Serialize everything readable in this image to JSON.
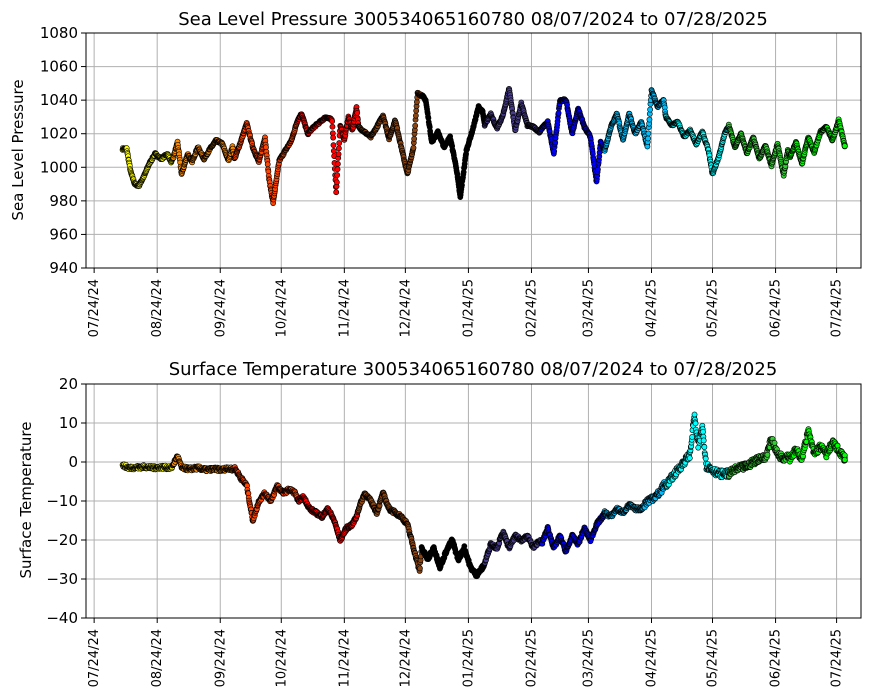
{
  "figure": {
    "background": "#ffffff",
    "grid_color": "#b0b0b0",
    "month_colors": [
      "#ffff00",
      "#ff8c00",
      "#ff4500",
      "#ff0000",
      "#8b4513",
      "#000000",
      "#483d8b",
      "#0000ff",
      "#00bfff",
      "#00ffff",
      "#32cd32",
      "#00ff00"
    ]
  },
  "chart_data": [
    {
      "type": "scatter",
      "title": "Sea Level Pressure 300534065160780  08/07/2024 to 07/28/2025",
      "xlabel": "",
      "ylabel": "Sea Level Pressure",
      "ylim": [
        940,
        1080
      ],
      "yticks": [
        940,
        960,
        980,
        1000,
        1020,
        1040,
        1060,
        1080
      ],
      "xlim": [
        "2024-07-20",
        "2025-08-05"
      ],
      "xticks": [
        "2024-07-24",
        "2024-08-24",
        "2024-09-24",
        "2024-10-24",
        "2024-11-24",
        "2024-12-24",
        "2025-01-24",
        "2025-02-24",
        "2025-03-24",
        "2025-04-24",
        "2025-05-24",
        "2025-06-24",
        "2025-07-24"
      ],
      "xtick_labels": [
        "07/24/24",
        "08/24/24",
        "09/24/24",
        "10/24/24",
        "11/24/24",
        "12/24/24",
        "01/24/25",
        "02/24/25",
        "03/24/25",
        "04/24/25",
        "05/24/25",
        "06/24/25",
        "07/24/25"
      ],
      "grid": true,
      "legend": "none",
      "series": [
        {
          "color": "#ffff00",
          "x": [
            "2024-08-07",
            "2024-08-09",
            "2024-08-11",
            "2024-08-13",
            "2024-08-15",
            "2024-08-18",
            "2024-08-20",
            "2024-08-23",
            "2024-08-26",
            "2024-08-29",
            "2024-08-31"
          ],
          "y": [
            1011,
            1011,
            997,
            990,
            989,
            996,
            1002,
            1008,
            1005,
            1008,
            1003
          ]
        },
        {
          "color": "#ff8c00",
          "x": [
            "2024-09-01",
            "2024-09-03",
            "2024-09-05",
            "2024-09-08",
            "2024-09-10",
            "2024-09-13",
            "2024-09-16",
            "2024-09-19",
            "2024-09-22",
            "2024-09-25",
            "2024-09-28",
            "2024-09-30"
          ],
          "y": [
            1006,
            1015,
            996,
            1008,
            1003,
            1012,
            1005,
            1011,
            1016,
            1014,
            1004,
            1012
          ]
        },
        {
          "color": "#ff4500",
          "x": [
            "2024-10-01",
            "2024-10-04",
            "2024-10-07",
            "2024-10-10",
            "2024-10-13",
            "2024-10-16",
            "2024-10-18",
            "2024-10-20",
            "2024-10-23",
            "2024-10-26",
            "2024-10-29",
            "2024-10-31"
          ],
          "y": [
            1005,
            1015,
            1026,
            1012,
            1003,
            1018,
            993,
            979,
            1004,
            1010,
            1016,
            1024
          ]
        },
        {
          "color": "#ff0000",
          "x": [
            "2024-11-01",
            "2024-11-03",
            "2024-11-06",
            "2024-11-09",
            "2024-11-12",
            "2024-11-15",
            "2024-11-18",
            "2024-11-20",
            "2024-11-22",
            "2024-11-24",
            "2024-11-26",
            "2024-11-28",
            "2024-11-30"
          ],
          "y": [
            1028,
            1032,
            1020,
            1024,
            1027,
            1030,
            1028,
            985,
            1025,
            1016,
            1030,
            1022,
            1036
          ]
        },
        {
          "color": "#8b4513",
          "x": [
            "2024-12-01",
            "2024-12-04",
            "2024-12-07",
            "2024-12-10",
            "2024-12-13",
            "2024-12-16",
            "2024-12-19",
            "2024-12-22",
            "2024-12-25",
            "2024-12-28",
            "2024-12-30"
          ],
          "y": [
            1024,
            1021,
            1018,
            1024,
            1031,
            1017,
            1028,
            1012,
            996,
            1012,
            1044
          ]
        },
        {
          "color": "#000000",
          "x": [
            "2025-01-01",
            "2025-01-03",
            "2025-01-06",
            "2025-01-09",
            "2025-01-12",
            "2025-01-15",
            "2025-01-18",
            "2025-01-20",
            "2025-01-23",
            "2025-01-26",
            "2025-01-29",
            "2025-01-31"
          ],
          "y": [
            1043,
            1040,
            1015,
            1021,
            1012,
            1018,
            1000,
            982,
            1010,
            1022,
            1036,
            1033
          ]
        },
        {
          "color": "#483d8b",
          "x": [
            "2025-02-01",
            "2025-02-04",
            "2025-02-07",
            "2025-02-10",
            "2025-02-13",
            "2025-02-16",
            "2025-02-19",
            "2025-02-22",
            "2025-02-25",
            "2025-02-28"
          ],
          "y": [
            1025,
            1032,
            1023,
            1031,
            1047,
            1022,
            1038,
            1025,
            1024,
            1021
          ]
        },
        {
          "color": "#0000ff",
          "x": [
            "2025-03-01",
            "2025-03-04",
            "2025-03-07",
            "2025-03-10",
            "2025-03-13",
            "2025-03-16",
            "2025-03-19",
            "2025-03-22",
            "2025-03-25",
            "2025-03-28",
            "2025-03-30"
          ],
          "y": [
            1023,
            1027,
            1008,
            1040,
            1040,
            1020,
            1035,
            1024,
            1018,
            991,
            1015
          ]
        },
        {
          "color": "#00bfff",
          "x": [
            "2025-04-01",
            "2025-04-04",
            "2025-04-07",
            "2025-04-10",
            "2025-04-13",
            "2025-04-16",
            "2025-04-19",
            "2025-04-22",
            "2025-04-24",
            "2025-04-27",
            "2025-04-30"
          ],
          "y": [
            1010,
            1024,
            1032,
            1016,
            1032,
            1020,
            1027,
            1012,
            1046,
            1036,
            1040
          ]
        },
        {
          "color": "#00ffff",
          "x": [
            "2025-05-01",
            "2025-05-04",
            "2025-05-07",
            "2025-05-10",
            "2025-05-13",
            "2025-05-16",
            "2025-05-19",
            "2025-05-22",
            "2025-05-24",
            "2025-05-27",
            "2025-05-30"
          ],
          "y": [
            1030,
            1025,
            1027,
            1018,
            1022,
            1014,
            1021,
            1010,
            996,
            1006,
            1020
          ]
        },
        {
          "color": "#32cd32",
          "x": [
            "2025-06-01",
            "2025-06-04",
            "2025-06-07",
            "2025-06-10",
            "2025-06-13",
            "2025-06-16",
            "2025-06-19",
            "2025-06-22",
            "2025-06-25",
            "2025-06-28",
            "2025-06-30"
          ],
          "y": [
            1025,
            1012,
            1020,
            1008,
            1018,
            1005,
            1013,
            1001,
            1014,
            995,
            1010
          ]
        },
        {
          "color": "#00ff00",
          "x": [
            "2025-07-01",
            "2025-07-04",
            "2025-07-07",
            "2025-07-10",
            "2025-07-13",
            "2025-07-16",
            "2025-07-19",
            "2025-07-22",
            "2025-07-25",
            "2025-07-28"
          ],
          "y": [
            1006,
            1015,
            1002,
            1018,
            1009,
            1021,
            1024,
            1016,
            1028,
            1013
          ]
        }
      ]
    },
    {
      "type": "scatter",
      "title": "Surface Temperature 300534065160780  08/07/2024 to 07/28/2025",
      "xlabel": "",
      "ylabel": "Surface Temperature",
      "ylim": [
        -40,
        20
      ],
      "yticks": [
        -40,
        -30,
        -20,
        -10,
        0,
        10,
        20
      ],
      "xlim": [
        "2024-07-20",
        "2025-08-05"
      ],
      "xticks": [
        "2024-07-24",
        "2024-08-24",
        "2024-09-24",
        "2024-10-24",
        "2024-11-24",
        "2024-12-24",
        "2025-01-24",
        "2025-02-24",
        "2025-03-24",
        "2025-04-24",
        "2025-05-24",
        "2025-06-24",
        "2025-07-24"
      ],
      "xtick_labels": [
        "07/24/24",
        "08/24/24",
        "09/24/24",
        "10/24/24",
        "11/24/24",
        "12/24/24",
        "01/24/25",
        "02/24/25",
        "03/24/25",
        "04/24/25",
        "05/24/25",
        "06/24/25",
        "07/24/25"
      ],
      "grid": true,
      "legend": "none",
      "series": [
        {
          "color": "#ffff00",
          "x": [
            "2024-08-07",
            "2024-08-10",
            "2024-08-14",
            "2024-08-18",
            "2024-08-22",
            "2024-08-26",
            "2024-08-31"
          ],
          "y": [
            -0.8,
            -1.5,
            -1.4,
            -1.2,
            -1.5,
            -1.3,
            -1.5
          ]
        },
        {
          "color": "#ff8c00",
          "x": [
            "2024-09-01",
            "2024-09-03",
            "2024-09-05",
            "2024-09-09",
            "2024-09-13",
            "2024-09-17",
            "2024-09-21",
            "2024-09-25",
            "2024-09-28",
            "2024-09-30"
          ],
          "y": [
            -0.5,
            1.5,
            -1.5,
            -1.8,
            -1.5,
            -2.0,
            -1.8,
            -2.0,
            -1.5,
            -2.0
          ]
        },
        {
          "color": "#ff4500",
          "x": [
            "2024-10-01",
            "2024-10-04",
            "2024-10-07",
            "2024-10-10",
            "2024-10-13",
            "2024-10-16",
            "2024-10-19",
            "2024-10-22",
            "2024-10-25",
            "2024-10-28",
            "2024-10-31"
          ],
          "y": [
            -1.5,
            -4,
            -6,
            -15,
            -10,
            -8,
            -10,
            -6,
            -8,
            -7,
            -8
          ]
        },
        {
          "color": "#ff0000",
          "x": [
            "2024-11-01",
            "2024-11-04",
            "2024-11-07",
            "2024-11-10",
            "2024-11-13",
            "2024-11-16",
            "2024-11-19",
            "2024-11-22",
            "2024-11-25",
            "2024-11-28",
            "2024-11-30"
          ],
          "y": [
            -10,
            -9,
            -12,
            -13,
            -14,
            -12,
            -15,
            -20,
            -17,
            -16,
            -14
          ]
        },
        {
          "color": "#8b4513",
          "x": [
            "2024-12-01",
            "2024-12-04",
            "2024-12-07",
            "2024-12-10",
            "2024-12-13",
            "2024-12-16",
            "2024-12-19",
            "2024-12-22",
            "2024-12-25",
            "2024-12-28",
            "2024-12-31"
          ],
          "y": [
            -12,
            -8,
            -10,
            -13,
            -8,
            -12,
            -13,
            -14,
            -16,
            -22,
            -28
          ]
        },
        {
          "color": "#000000",
          "x": [
            "2025-01-01",
            "2025-01-04",
            "2025-01-07",
            "2025-01-10",
            "2025-01-13",
            "2025-01-16",
            "2025-01-19",
            "2025-01-22",
            "2025-01-25",
            "2025-01-28",
            "2025-01-31"
          ],
          "y": [
            -22,
            -25,
            -22,
            -27,
            -23,
            -20,
            -25,
            -22,
            -27,
            -29,
            -27
          ]
        },
        {
          "color": "#483d8b",
          "x": [
            "2025-02-01",
            "2025-02-04",
            "2025-02-07",
            "2025-02-10",
            "2025-02-13",
            "2025-02-16",
            "2025-02-19",
            "2025-02-22",
            "2025-02-25",
            "2025-02-28"
          ],
          "y": [
            -26,
            -21,
            -22,
            -18,
            -22,
            -19,
            -20,
            -19,
            -22,
            -20
          ]
        },
        {
          "color": "#0000ff",
          "x": [
            "2025-03-01",
            "2025-03-04",
            "2025-03-07",
            "2025-03-10",
            "2025-03-13",
            "2025-03-16",
            "2025-03-19",
            "2025-03-22",
            "2025-03-25",
            "2025-03-28",
            "2025-03-31"
          ],
          "y": [
            -21,
            -17,
            -22,
            -19,
            -23,
            -19,
            -21,
            -17,
            -20,
            -16,
            -14
          ]
        },
        {
          "color": "#00bfff",
          "x": [
            "2025-04-01",
            "2025-04-04",
            "2025-04-07",
            "2025-04-10",
            "2025-04-13",
            "2025-04-16",
            "2025-04-19",
            "2025-04-22",
            "2025-04-25",
            "2025-04-28",
            "2025-04-30"
          ],
          "y": [
            -13,
            -14,
            -12,
            -13,
            -11,
            -12,
            -12,
            -10,
            -9,
            -8,
            -6
          ]
        },
        {
          "color": "#00ffff",
          "x": [
            "2025-05-01",
            "2025-05-04",
            "2025-05-07",
            "2025-05-10",
            "2025-05-13",
            "2025-05-15",
            "2025-05-17",
            "2025-05-19",
            "2025-05-21",
            "2025-05-24",
            "2025-05-27",
            "2025-05-30"
          ],
          "y": [
            -6,
            -4,
            -2,
            0,
            2,
            12,
            4,
            9,
            -1,
            -2,
            -3,
            -3
          ]
        },
        {
          "color": "#32cd32",
          "x": [
            "2025-06-01",
            "2025-06-04",
            "2025-06-07",
            "2025-06-10",
            "2025-06-13",
            "2025-06-16",
            "2025-06-19",
            "2025-06-22",
            "2025-06-25",
            "2025-06-28",
            "2025-06-30"
          ],
          "y": [
            -3,
            -2,
            -1.5,
            -1,
            0,
            1,
            1,
            6,
            2,
            1,
            2
          ]
        },
        {
          "color": "#00ff00",
          "x": [
            "2025-07-01",
            "2025-07-04",
            "2025-07-07",
            "2025-07-10",
            "2025-07-13",
            "2025-07-16",
            "2025-07-19",
            "2025-07-22",
            "2025-07-25",
            "2025-07-28"
          ],
          "y": [
            1,
            3,
            1,
            8,
            2,
            4,
            2,
            5,
            3,
            1
          ]
        }
      ]
    }
  ]
}
